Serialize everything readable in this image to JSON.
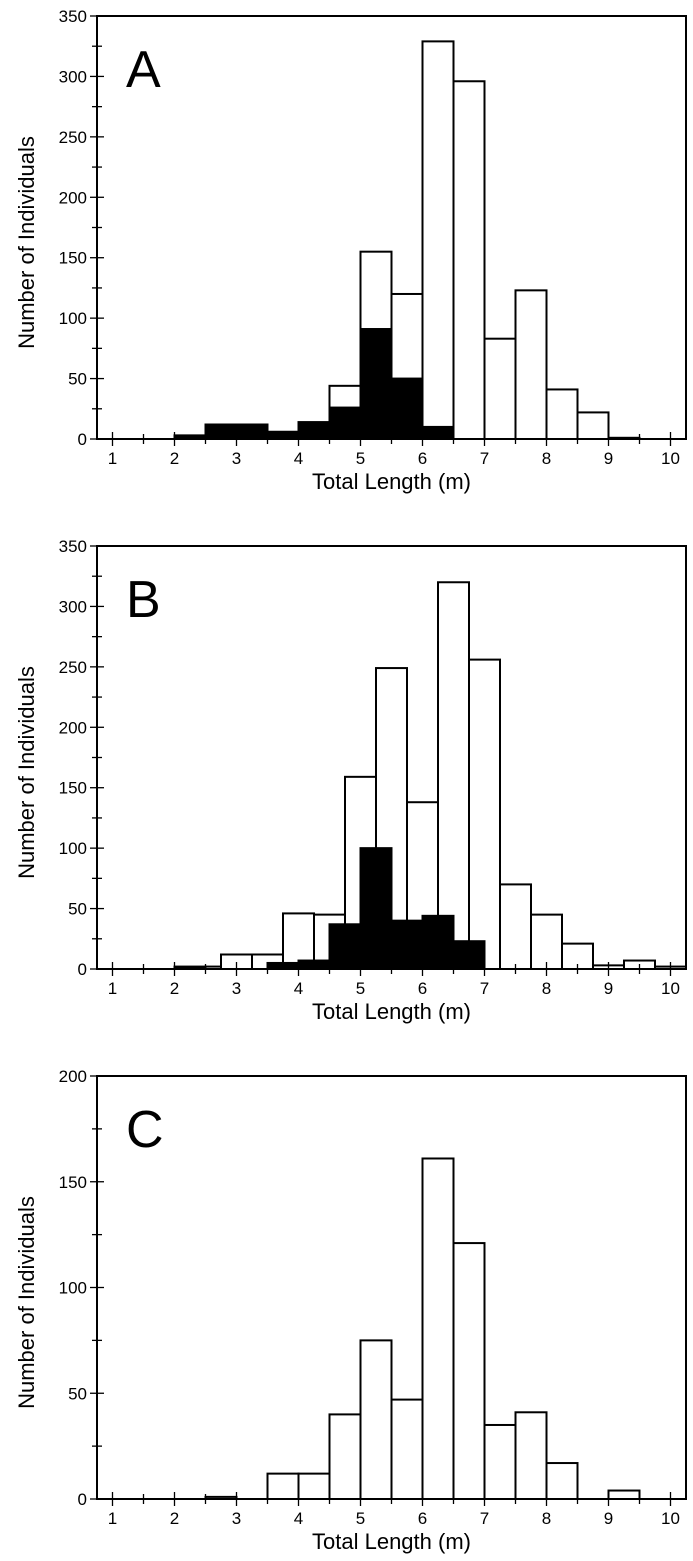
{
  "chart_data": [
    {
      "type": "bar",
      "panel_label": "A",
      "xlabel": "Total Length (m)",
      "ylabel": "Number of Individuals",
      "xlim": [
        0.75,
        10.25
      ],
      "ylim": [
        0,
        350
      ],
      "x_ticks": [
        1,
        2,
        3,
        4,
        5,
        6,
        7,
        8,
        9,
        10
      ],
      "y_ticks": [
        0,
        50,
        100,
        150,
        200,
        250,
        300,
        350
      ],
      "bin_width": 0.5,
      "series": [
        {
          "fill": "#ffffff",
          "bars": [
            {
              "x": 3.75,
              "value": 4
            },
            {
              "x": 4.75,
              "value": 44
            },
            {
              "x": 5.25,
              "value": 155
            },
            {
              "x": 5.75,
              "value": 120
            },
            {
              "x": 6.25,
              "value": 329
            },
            {
              "x": 6.75,
              "value": 296
            },
            {
              "x": 7.25,
              "value": 83
            },
            {
              "x": 7.75,
              "value": 123
            },
            {
              "x": 8.25,
              "value": 41
            },
            {
              "x": 8.75,
              "value": 22
            },
            {
              "x": 9.25,
              "value": 1
            }
          ]
        },
        {
          "fill": "#000000",
          "bars": [
            {
              "x": 2.25,
              "value": 3
            },
            {
              "x": 2.75,
              "value": 12
            },
            {
              "x": 3.25,
              "value": 12
            },
            {
              "x": 3.75,
              "value": 6
            },
            {
              "x": 4.25,
              "value": 14
            },
            {
              "x": 4.75,
              "value": 26
            },
            {
              "x": 5.25,
              "value": 91
            },
            {
              "x": 5.75,
              "value": 50
            },
            {
              "x": 6.25,
              "value": 10
            }
          ]
        }
      ]
    },
    {
      "type": "bar",
      "panel_label": "B",
      "xlabel": "Total Length (m)",
      "ylabel": "Number of Individuals",
      "xlim": [
        0.75,
        10.25
      ],
      "ylim": [
        0,
        350
      ],
      "x_ticks": [
        1,
        2,
        3,
        4,
        5,
        6,
        7,
        8,
        9,
        10
      ],
      "y_ticks": [
        0,
        50,
        100,
        150,
        200,
        250,
        300,
        350
      ],
      "bin_width": 0.5,
      "series": [
        {
          "fill": "#ffffff",
          "bars": [
            {
              "x": 2.75,
              "value": 2
            },
            {
              "x": 3.0,
              "value": 12
            },
            {
              "x": 3.5,
              "value": 12
            },
            {
              "x": 4.0,
              "value": 46
            },
            {
              "x": 4.5,
              "value": 45
            },
            {
              "x": 5.0,
              "value": 159
            },
            {
              "x": 5.5,
              "value": 249
            },
            {
              "x": 6.0,
              "value": 138
            },
            {
              "x": 6.5,
              "value": 320
            },
            {
              "x": 7.0,
              "value": 256
            },
            {
              "x": 7.5,
              "value": 70
            },
            {
              "x": 8.0,
              "value": 45
            },
            {
              "x": 8.5,
              "value": 21
            },
            {
              "x": 9.0,
              "value": 3
            },
            {
              "x": 9.5,
              "value": 7
            },
            {
              "x": 10.0,
              "value": 2
            }
          ]
        },
        {
          "fill": "#000000",
          "bars": [
            {
              "x": 2.25,
              "value": 2
            },
            {
              "x": 3.75,
              "value": 5
            },
            {
              "x": 4.25,
              "value": 7
            },
            {
              "x": 4.75,
              "value": 37
            },
            {
              "x": 5.25,
              "value": 100
            },
            {
              "x": 5.75,
              "value": 40
            },
            {
              "x": 6.25,
              "value": 44
            },
            {
              "x": 6.75,
              "value": 23
            }
          ]
        }
      ]
    },
    {
      "type": "bar",
      "panel_label": "C",
      "xlabel": "Total Length (m)",
      "ylabel": "Number of Individuals",
      "xlim": [
        0.75,
        10.25
      ],
      "ylim": [
        0,
        200
      ],
      "x_ticks": [
        1,
        2,
        3,
        4,
        5,
        6,
        7,
        8,
        9,
        10
      ],
      "y_ticks": [
        0,
        50,
        100,
        150,
        200
      ],
      "bin_width": 0.5,
      "series": [
        {
          "fill": "#ffffff",
          "bars": [
            {
              "x": 2.75,
              "value": 1
            },
            {
              "x": 3.75,
              "value": 12
            },
            {
              "x": 4.25,
              "value": 12
            },
            {
              "x": 4.75,
              "value": 40
            },
            {
              "x": 5.25,
              "value": 75
            },
            {
              "x": 5.75,
              "value": 47
            },
            {
              "x": 6.25,
              "value": 161
            },
            {
              "x": 6.75,
              "value": 121
            },
            {
              "x": 7.25,
              "value": 35
            },
            {
              "x": 7.75,
              "value": 41
            },
            {
              "x": 8.25,
              "value": 17
            },
            {
              "x": 9.25,
              "value": 4
            }
          ]
        }
      ]
    }
  ]
}
